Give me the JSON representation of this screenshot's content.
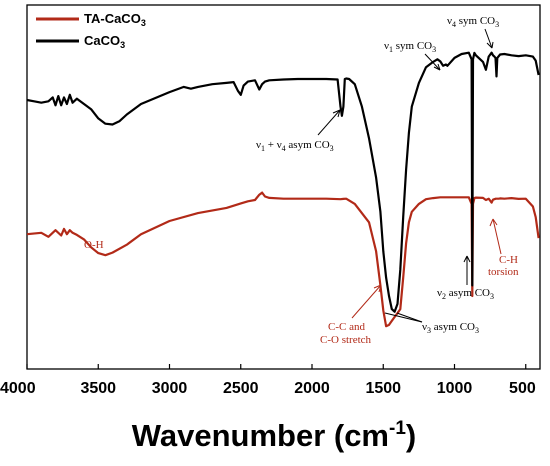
{
  "chart_data": {
    "type": "line",
    "xlabel": "Wavenumber (cm",
    "xlabel_sup": "-1",
    "xlabel_tail": ")",
    "xlim": [
      4000,
      400
    ],
    "x_ticks": [
      4000,
      3500,
      3000,
      2500,
      2000,
      1500,
      1000,
      500
    ],
    "y_ticks_shown": false,
    "grid": false,
    "legend_position": "top-left",
    "series": [
      {
        "name_main": "TA-CaCO",
        "name_sub": "3",
        "color": "#b22a18",
        "x": [
          4000,
          3900,
          3850,
          3800,
          3760,
          3740,
          3720,
          3700,
          3680,
          3650,
          3600,
          3550,
          3500,
          3450,
          3400,
          3300,
          3200,
          3000,
          2800,
          2600,
          2500,
          2450,
          2400,
          2370,
          2350,
          2330,
          2300,
          2200,
          2000,
          1900,
          1800,
          1780,
          1760,
          1700,
          1600,
          1550,
          1520,
          1500,
          1480,
          1460,
          1440,
          1420,
          1400,
          1380,
          1360,
          1340,
          1320,
          1300,
          1250,
          1200,
          1150,
          1100,
          1050,
          1000,
          950,
          900,
          880,
          875,
          870,
          860,
          850,
          800,
          780,
          760,
          740,
          730,
          720,
          710,
          700,
          690,
          680,
          650,
          600,
          550,
          500,
          450,
          430,
          410
        ],
        "y": [
          31.5,
          32,
          30.5,
          33,
          31,
          33.5,
          31.5,
          33,
          32,
          31.2,
          29.5,
          26.5,
          24.3,
          23.5,
          24.5,
          27.5,
          31.5,
          36.5,
          39.5,
          41.5,
          43.2,
          44,
          44.5,
          46.5,
          47.3,
          45.8,
          45.3,
          45,
          45,
          45,
          44.8,
          44.9,
          45,
          43,
          36,
          25,
          12,
          2.5,
          -3.5,
          -3,
          -1.5,
          0,
          1.5,
          3,
          15,
          28,
          36,
          40,
          43,
          44.8,
          45.2,
          45.5,
          45.5,
          45.5,
          45.5,
          45.5,
          43,
          8,
          43,
          45.2,
          45.4,
          45.3,
          44.5,
          45,
          43.5,
          44.6,
          44.8,
          45,
          45,
          45,
          45.1,
          45,
          45.2,
          44.9,
          45,
          42,
          38,
          30
        ]
      },
      {
        "name_main": "CaCO",
        "name_sub": "3",
        "color": "#000000",
        "x": [
          4000,
          3950,
          3900,
          3850,
          3820,
          3800,
          3780,
          3760,
          3740,
          3720,
          3700,
          3680,
          3650,
          3600,
          3550,
          3500,
          3450,
          3400,
          3350,
          3300,
          3200,
          3000,
          2900,
          2850,
          2800,
          2700,
          2600,
          2550,
          2520,
          2500,
          2480,
          2450,
          2400,
          2370,
          2350,
          2330,
          2300,
          2200,
          2100,
          2000,
          1900,
          1820,
          1800,
          1790,
          1780,
          1770,
          1760,
          1740,
          1700,
          1650,
          1600,
          1550,
          1520,
          1500,
          1480,
          1460,
          1440,
          1420,
          1400,
          1380,
          1360,
          1340,
          1320,
          1300,
          1250,
          1200,
          1150,
          1120,
          1100,
          1080,
          1060,
          1050,
          1000,
          950,
          900,
          880,
          875,
          870,
          860,
          850,
          800,
          780,
          760,
          740,
          730,
          720,
          712,
          705,
          700,
          680,
          650,
          600,
          550,
          500,
          450,
          430,
          410
        ],
        "y": [
          82.5,
          82,
          81.5,
          82,
          83.5,
          80.5,
          84,
          80.5,
          83.5,
          81,
          84.5,
          81.5,
          83,
          81,
          79,
          75.5,
          73.5,
          73.2,
          74.5,
          77,
          81,
          85.5,
          87.5,
          86.8,
          87.5,
          88.5,
          89,
          89.3,
          86,
          84.5,
          88,
          89.5,
          90,
          86.5,
          88.5,
          89.5,
          90,
          90.3,
          90.5,
          90.5,
          90.5,
          90.3,
          80,
          76.5,
          80,
          90.5,
          90.7,
          90.5,
          88.5,
          80,
          68,
          53,
          40,
          25,
          15,
          8,
          3,
          2,
          5,
          18,
          38,
          56,
          70,
          80,
          89,
          95,
          97,
          98,
          97.2,
          95.5,
          96,
          95.5,
          98.5,
          100,
          100.5,
          98,
          12,
          98,
          100.4,
          99.5,
          97,
          94,
          99,
          100.5,
          99.5,
          99,
          98.5,
          91.5,
          98.5,
          99.8,
          100,
          99.5,
          99.2,
          99.5,
          99,
          97.5,
          92
        ]
      }
    ],
    "annotations": [
      {
        "text": "ν",
        "sub": "4",
        "tail": " sym CO",
        "tail_sub": "3",
        "color": "black"
      },
      {
        "text": "ν",
        "sub": "1",
        "tail": " sym CO",
        "tail_sub": "3",
        "color": "black"
      },
      {
        "text": "ν",
        "sub": "1",
        "mid": " + ν",
        "mid_sub": "4",
        "tail": " asym CO",
        "tail_sub": "3",
        "color": "black"
      },
      {
        "text": "O-H",
        "color": "red"
      },
      {
        "text": "C-H",
        "color": "red"
      },
      {
        "text": "torsion",
        "color": "red"
      },
      {
        "text": "ν",
        "sub": "2",
        "tail": " asym CO",
        "tail_sub": "3",
        "color": "black"
      },
      {
        "text": "ν",
        "sub": "3",
        "tail": " asym CO",
        "tail_sub": "3",
        "color": "black"
      },
      {
        "text": "C-C and",
        "color": "red"
      },
      {
        "text": "C-O stretch",
        "color": "red"
      }
    ]
  }
}
